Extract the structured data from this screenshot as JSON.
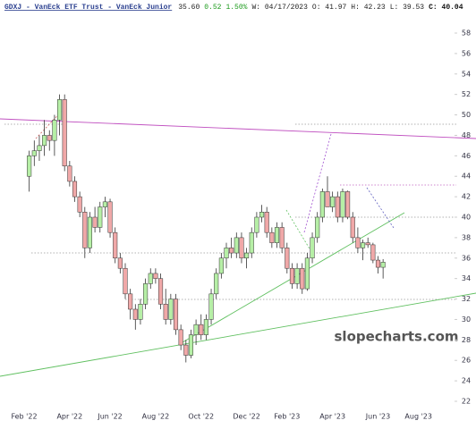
{
  "chart_data": {
    "type": "candlestick",
    "title": "GDXJ - VanEck ETF Trust - VanEck Junior",
    "info": [
      "35.60",
      "0.52",
      "1.50%",
      "W: 04/17/2023",
      "O: 41.97",
      "H: 42.23",
      "L: 39.53",
      "C: 40.04"
    ],
    "watermark": "slopecharts.com",
    "categories": [
      "Feb '22",
      null,
      null,
      null,
      null,
      null,
      null,
      null,
      null,
      "Apr '22",
      null,
      null,
      null,
      null,
      null,
      null,
      null,
      "Jun '22",
      null,
      null,
      null,
      null,
      null,
      null,
      null,
      null,
      "Aug '22",
      null,
      null,
      null,
      null,
      null,
      null,
      null,
      null,
      "Oct '22",
      null,
      null,
      null,
      null,
      null,
      null,
      null,
      null,
      "Dec '22",
      null,
      null,
      null,
      null,
      null,
      null,
      null,
      "Feb '23",
      null,
      null,
      null,
      null,
      null,
      null,
      null,
      null,
      "Apr '23",
      null,
      null,
      null,
      null,
      null,
      null,
      null,
      null,
      "Jun '23",
      null,
      null,
      null,
      null,
      null,
      null,
      null,
      "Aug '23"
    ],
    "open": [
      null,
      44,
      46,
      46.5,
      47,
      48,
      47.5,
      49.5,
      51.5,
      45,
      43.5,
      42,
      40.5,
      37,
      40,
      39,
      41,
      41.5,
      38.5,
      36,
      35,
      32.5,
      31,
      30,
      31.5,
      33.5,
      34.5,
      34,
      31.5,
      30,
      32,
      29,
      27.5,
      26.5,
      28.5,
      29.5,
      28.5,
      30,
      32.5,
      34.5,
      36,
      37,
      36.5,
      38,
      36,
      36.5,
      38.5,
      40,
      40.5,
      38.5,
      37.5,
      39,
      37,
      35,
      33.5,
      35,
      33,
      36,
      38,
      40,
      42.5,
      41,
      42,
      40,
      42.5,
      40,
      38,
      37,
      37.5,
      37.3,
      35.8,
      35.1,
      null,
      null,
      null,
      null,
      null,
      null,
      null
    ],
    "high": [
      null,
      46.5,
      47.5,
      48,
      49.5,
      48.5,
      50,
      52,
      52,
      45.5,
      44,
      42.5,
      41,
      40.5,
      41,
      41.5,
      42,
      41.8,
      39,
      36.5,
      35.5,
      33,
      31.5,
      32,
      34,
      35,
      35,
      34.5,
      33,
      32.5,
      32.5,
      29.5,
      28,
      29,
      30,
      30.5,
      30.5,
      33,
      35,
      36.5,
      37.5,
      38,
      38.5,
      38.5,
      37,
      39,
      40.5,
      41.2,
      41,
      39,
      39.5,
      39.5,
      37.5,
      35.5,
      35.5,
      35.5,
      36.5,
      38.5,
      40.5,
      42.8,
      44,
      42.5,
      42.5,
      42.8,
      42.6,
      40.5,
      39,
      37.8,
      38,
      37.5,
      36.2,
      35.9,
      null,
      null,
      null,
      null,
      null,
      null,
      null
    ],
    "low": [
      null,
      42.5,
      45,
      45.5,
      46,
      46.5,
      46,
      48,
      44.5,
      43,
      41.5,
      40,
      36,
      36.5,
      38.5,
      38.5,
      40,
      38,
      35.5,
      34.5,
      32,
      30,
      29,
      29.5,
      31,
      33,
      33.5,
      31,
      29.5,
      29.5,
      28.5,
      27,
      25.8,
      26.2,
      27.5,
      28,
      28,
      29.5,
      32,
      34,
      35,
      36,
      36,
      35.5,
      35,
      36,
      38,
      39.5,
      38,
      37,
      37,
      36.5,
      34.5,
      33,
      33,
      32.5,
      32.8,
      35.5,
      37.5,
      39.5,
      41,
      40.5,
      39.5,
      39.5,
      39.8,
      37.5,
      36.5,
      35.8,
      37,
      35.5,
      34.5,
      34,
      null,
      null,
      null,
      null,
      null,
      null,
      null
    ],
    "close": [
      null,
      46,
      46.5,
      47,
      48,
      47.5,
      49.5,
      51.5,
      45,
      43.5,
      42,
      40.5,
      37,
      40,
      39,
      41,
      41.5,
      38.5,
      36,
      35,
      32.5,
      31,
      30,
      31.5,
      33.5,
      34.5,
      34,
      31.5,
      30,
      32,
      29,
      27.5,
      26.5,
      28.5,
      29.5,
      28.5,
      30,
      32.5,
      34.5,
      36,
      37,
      36.5,
      38,
      36,
      36.5,
      38.5,
      40,
      40.5,
      38.5,
      37.5,
      39,
      37,
      35,
      33.5,
      35,
      33,
      36,
      38,
      40,
      42.5,
      41,
      42,
      40,
      42.5,
      40,
      38,
      37,
      37.5,
      37.3,
      35.8,
      35.1,
      35.6,
      null,
      null,
      null,
      null,
      null,
      null,
      null
    ],
    "up_color": "#b6efa6",
    "down_color": "#f0a8a8",
    "ylim": [
      22,
      58
    ],
    "yticks": [
      22,
      24,
      26,
      28,
      30,
      32,
      34,
      36,
      38,
      40,
      42,
      44,
      46,
      48,
      50,
      52,
      54,
      56,
      58
    ]
  }
}
